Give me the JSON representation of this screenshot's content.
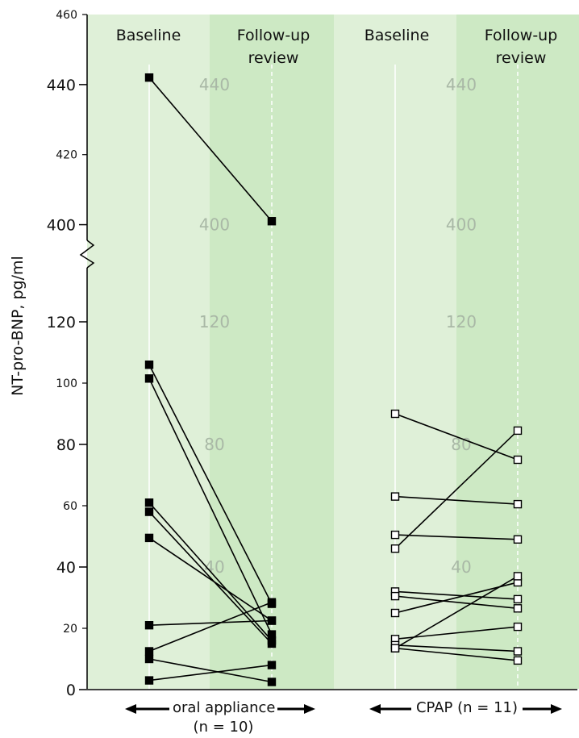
{
  "chart_data": {
    "type": "line",
    "ylabel": "NT-pro-BNP, pg/ml",
    "axis_break": [
      130,
      390
    ],
    "ylim": [
      0,
      460
    ],
    "y_ticks_major": [
      0,
      40,
      80,
      120,
      400,
      440
    ],
    "y_ticks_minor": [
      20,
      60,
      100,
      420,
      460
    ],
    "watermark_ticks": [
      40,
      80,
      120,
      400,
      440
    ],
    "panels": [
      {
        "group": "oral appliance",
        "n_label": "(n = 10)",
        "timepoints": [
          "Baseline",
          "Follow-up review"
        ],
        "marker": "filled-square",
        "pairs": [
          [
            442,
            401
          ],
          [
            106,
            28
          ],
          [
            101.5,
            18
          ],
          [
            61,
            16
          ],
          [
            58,
            15
          ],
          [
            49.5,
            22.5
          ],
          [
            21,
            22.5
          ],
          [
            12.5,
            28.5
          ],
          [
            10,
            2.5
          ],
          [
            3,
            8
          ]
        ]
      },
      {
        "group": "CPAP",
        "n_label": "(n = 11)",
        "timepoints": [
          "Baseline",
          "Follow-up review"
        ],
        "marker": "open-square",
        "pairs": [
          [
            90,
            75
          ],
          [
            63,
            60.5
          ],
          [
            50.5,
            49
          ],
          [
            46,
            84.5
          ],
          [
            32,
            29.5
          ],
          [
            30.5,
            26.5
          ],
          [
            25,
            35
          ],
          [
            16.5,
            20.5
          ],
          [
            14.5,
            12.5
          ],
          [
            13.5,
            9.5
          ],
          [
            13.5,
            37
          ]
        ]
      }
    ],
    "group_axis_labels": [
      "oral appliance",
      "CPAP (n = 11)"
    ],
    "colors": {
      "panel_light": "#dff0d8",
      "panel_dark": "#cde9c4",
      "line": "#000000",
      "watermark": "#a9b8a6"
    }
  }
}
